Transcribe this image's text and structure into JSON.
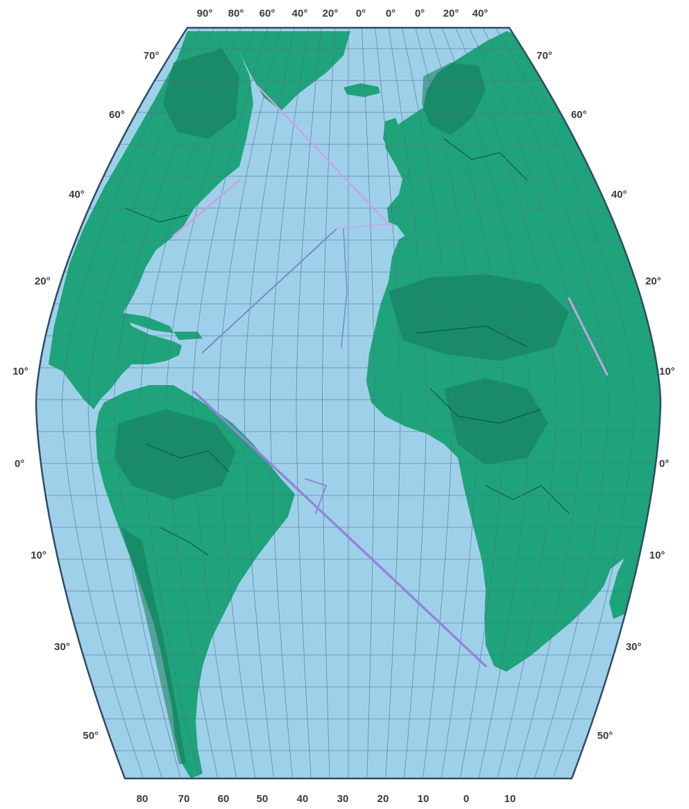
{
  "map": {
    "colors": {
      "ocean": "#9fd0ea",
      "land": "#1fa37a",
      "land_shadow": "#127a58",
      "border": "#0b5a40",
      "graticule": "#4d6f8f",
      "frame": "#2e4a66",
      "route_purple": "#8f86d8",
      "route_lilac": "#c8a4e2",
      "route_blue": "#6f8fc8"
    },
    "top_labels": [
      "90°",
      "80°",
      "60°",
      "40°",
      "20°",
      "0°",
      "0°",
      "0°",
      "20°",
      "40°"
    ],
    "left_labels": [
      "70°",
      "60°",
      "40°",
      "20°",
      "10°",
      "0°",
      "10°",
      "30°",
      "50°"
    ],
    "right_labels": [
      "70°",
      "60°",
      "40°",
      "20°",
      "10°",
      "0°",
      "10°",
      "30°",
      "50°"
    ],
    "bottom_labels": [
      "80",
      "70",
      "60",
      "50",
      "40",
      "30",
      "20",
      "10",
      "0",
      "10"
    ],
    "place_labels": [],
    "credit": ""
  }
}
